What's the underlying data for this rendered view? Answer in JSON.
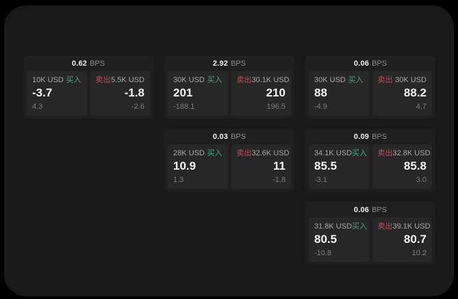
{
  "labels": {
    "bps_unit": "BPS",
    "buy": "买入",
    "sell": "卖出"
  },
  "colors": {
    "buy": "#3dab78",
    "sell": "#c24a60",
    "page": "#191919",
    "card": "#1f1f1f",
    "panel": "#272727"
  },
  "cards": [
    {
      "bps": "0.62",
      "buy": {
        "notional": "10K USD",
        "price": "-3.7",
        "sub": "4.3"
      },
      "sell": {
        "notional": "5.5K USD",
        "price": "-1.8",
        "sub": "-2.6"
      }
    },
    {
      "bps": "2.92",
      "buy": {
        "notional": "30K USD",
        "price": "201",
        "sub": "-188.1"
      },
      "sell": {
        "notional": "30.1K USD",
        "price": "210",
        "sub": "196.5"
      }
    },
    {
      "bps": "0.06",
      "buy": {
        "notional": "30K USD",
        "price": "88",
        "sub": "-4.9"
      },
      "sell": {
        "notional": "30K USD",
        "price": "88.2",
        "sub": "4.7"
      }
    },
    {
      "bps": "0.03",
      "buy": {
        "notional": "28K USD",
        "price": "10.9",
        "sub": "1.3"
      },
      "sell": {
        "notional": "32.6K USD",
        "price": "11",
        "sub": "-1.8"
      }
    },
    {
      "bps": "0.09",
      "buy": {
        "notional": "34.1K USD",
        "price": "85.5",
        "sub": "-3.1"
      },
      "sell": {
        "notional": "32.8K USD",
        "price": "85.8",
        "sub": "3.0"
      }
    },
    {
      "bps": "0.06",
      "buy": {
        "notional": "31.8K USD",
        "price": "80.5",
        "sub": "-10.8"
      },
      "sell": {
        "notional": "39.1K USD",
        "price": "80.7",
        "sub": "10.2"
      }
    }
  ]
}
